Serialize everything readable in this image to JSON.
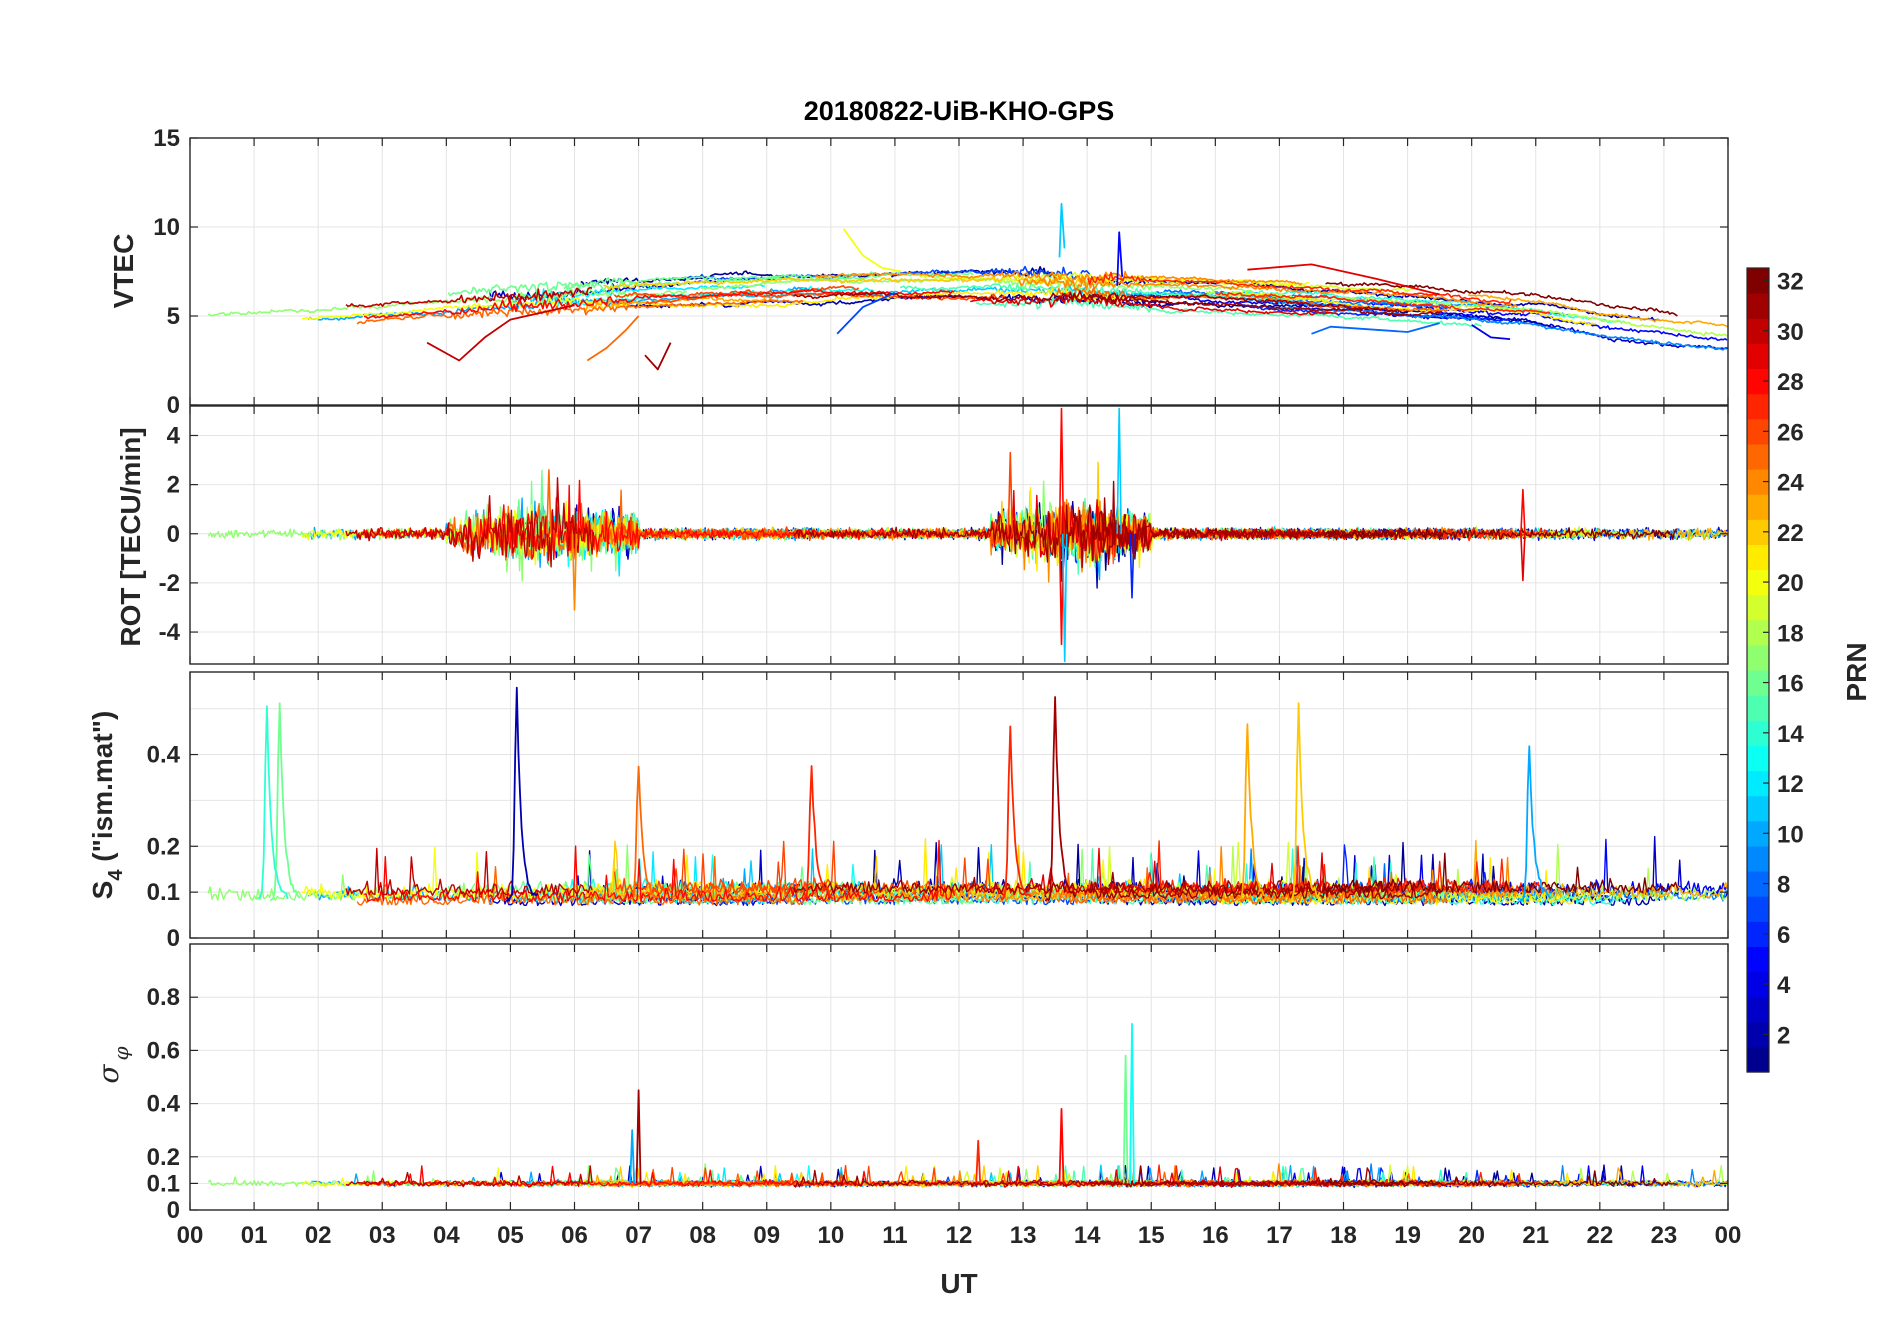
{
  "chart_data": {
    "type": "line",
    "title": "20180822-UiB-KHO-GPS",
    "xlabel": "UT",
    "x_tick_labels": [
      "00",
      "01",
      "02",
      "03",
      "04",
      "05",
      "06",
      "07",
      "08",
      "09",
      "10",
      "11",
      "12",
      "13",
      "14",
      "15",
      "16",
      "17",
      "18",
      "19",
      "20",
      "21",
      "22",
      "23",
      "00"
    ],
    "xlim_hours": [
      0,
      24
    ],
    "colorbar": {
      "label": "PRN",
      "range": [
        1,
        32
      ],
      "tick_labels": [
        "2",
        "4",
        "6",
        "8",
        "10",
        "12",
        "14",
        "16",
        "18",
        "20",
        "22",
        "24",
        "26",
        "28",
        "30",
        "32"
      ],
      "colormap": [
        "#00008f",
        "#0000ff",
        "#0080ff",
        "#00ffff",
        "#80ff80",
        "#ffff00",
        "#ff8000",
        "#ff0000",
        "#800000"
      ]
    },
    "panels": [
      {
        "id": "vtec",
        "ylabel": "VTEC",
        "ylim": [
          0,
          15
        ],
        "y_tick_labels": [
          "0",
          "5",
          "10",
          "15"
        ],
        "description_values": {
          "baseline": [
            4,
            8
          ],
          "peak_value": 11.3,
          "peak_hour": 13.6
        },
        "series": [
          {
            "prn": 30,
            "x": [
              3.7,
              4.2,
              4.6,
              5.0,
              5.5,
              6.0
            ],
            "values": [
              3.5,
              2.5,
              3.8,
              4.8,
              5.2,
              5.6
            ]
          },
          {
            "prn": 25,
            "x": [
              6.2,
              6.5,
              6.8,
              7.0
            ],
            "values": [
              2.5,
              3.2,
              4.2,
              5.0
            ]
          },
          {
            "prn": 31,
            "x": [
              7.1,
              7.3,
              7.5
            ],
            "values": [
              2.8,
              2.0,
              3.5
            ]
          },
          {
            "prn": 20,
            "x": [
              10.2,
              10.5,
              10.8,
              11.1
            ],
            "values": [
              9.9,
              8.4,
              7.7,
              7.5
            ]
          },
          {
            "prn": 7,
            "x": [
              10.1,
              10.5,
              11.0
            ],
            "values": [
              4.0,
              5.5,
              6.3
            ]
          },
          {
            "prn": 11,
            "x": [
              13.6
            ],
            "values": [
              11.3
            ]
          },
          {
            "prn": 5,
            "x": [
              14.5
            ],
            "values": [
              9.7
            ]
          },
          {
            "prn": 29,
            "x": [
              16.5,
              17.5,
              18.5,
              19.5
            ],
            "values": [
              7.6,
              7.9,
              7.1,
              6.2
            ]
          },
          {
            "prn": 8,
            "x": [
              17.5,
              17.8,
              19.0,
              19.5
            ],
            "values": [
              4.0,
              4.4,
              4.1,
              4.6
            ]
          },
          {
            "prn": 4,
            "x": [
              20.0,
              20.3,
              20.6
            ],
            "values": [
              4.5,
              3.8,
              3.7
            ]
          }
        ]
      },
      {
        "id": "rot",
        "ylabel": "ROT [TECU/min]",
        "ylim": [
          -5.3,
          5.2
        ],
        "y_tick_labels": [
          "-4",
          "-2",
          "0",
          "2",
          "4"
        ],
        "description_values": {
          "quiet_amplitude": 0.3,
          "active_intervals_hours": [
            [
              4.0,
              7.0
            ],
            [
              12.5,
              15.0
            ]
          ],
          "max": 5.1,
          "min": -5.2
        }
      },
      {
        "id": "s4",
        "ylabel": "S4 (\"ism.mat\")",
        "ylabel_main": "S",
        "ylabel_sub": "4",
        "ylabel_rest": " (\"ism.mat\")",
        "ylim": [
          0,
          0.58
        ],
        "y_tick_labels": [
          "0",
          "0.1",
          "0.2",
          "0.4"
        ],
        "description_values": {
          "baseline": [
            0.04,
            0.12
          ],
          "peaks": [
            {
              "hour": 1.4,
              "value": 0.51,
              "prn": 16
            },
            {
              "hour": 1.2,
              "value": 0.5,
              "prn": 14
            },
            {
              "hour": 5.1,
              "value": 0.54,
              "prn": 2
            },
            {
              "hour": 13.5,
              "value": 0.52,
              "prn": 31
            },
            {
              "hour": 17.3,
              "value": 0.51,
              "prn": 22
            },
            {
              "hour": 16.5,
              "value": 0.46,
              "prn": 23
            },
            {
              "hour": 12.8,
              "value": 0.46,
              "prn": 27
            },
            {
              "hour": 20.9,
              "value": 0.41,
              "prn": 10
            },
            {
              "hour": 7.0,
              "value": 0.37,
              "prn": 25
            },
            {
              "hour": 9.7,
              "value": 0.37,
              "prn": 27
            }
          ]
        }
      },
      {
        "id": "sigma_phi",
        "ylabel": "σ φ",
        "ylabel_main": "σ",
        "ylabel_sub": "φ",
        "ylim": [
          0,
          1.0
        ],
        "y_tick_labels": [
          "0",
          "0.1",
          "0.2",
          "0.4",
          "0.6",
          "0.8"
        ],
        "description_values": {
          "baseline": [
            0.08,
            0.13
          ],
          "peaks": [
            {
              "hour": 14.7,
              "value": 0.7,
              "prn": 13
            },
            {
              "hour": 14.6,
              "value": 0.58,
              "prn": 16
            },
            {
              "hour": 7.0,
              "value": 0.45,
              "prn": 31
            },
            {
              "hour": 13.6,
              "value": 0.38,
              "prn": 28
            },
            {
              "hour": 6.9,
              "value": 0.3,
              "prn": 10
            },
            {
              "hour": 12.3,
              "value": 0.26,
              "prn": 27
            }
          ]
        }
      }
    ]
  }
}
